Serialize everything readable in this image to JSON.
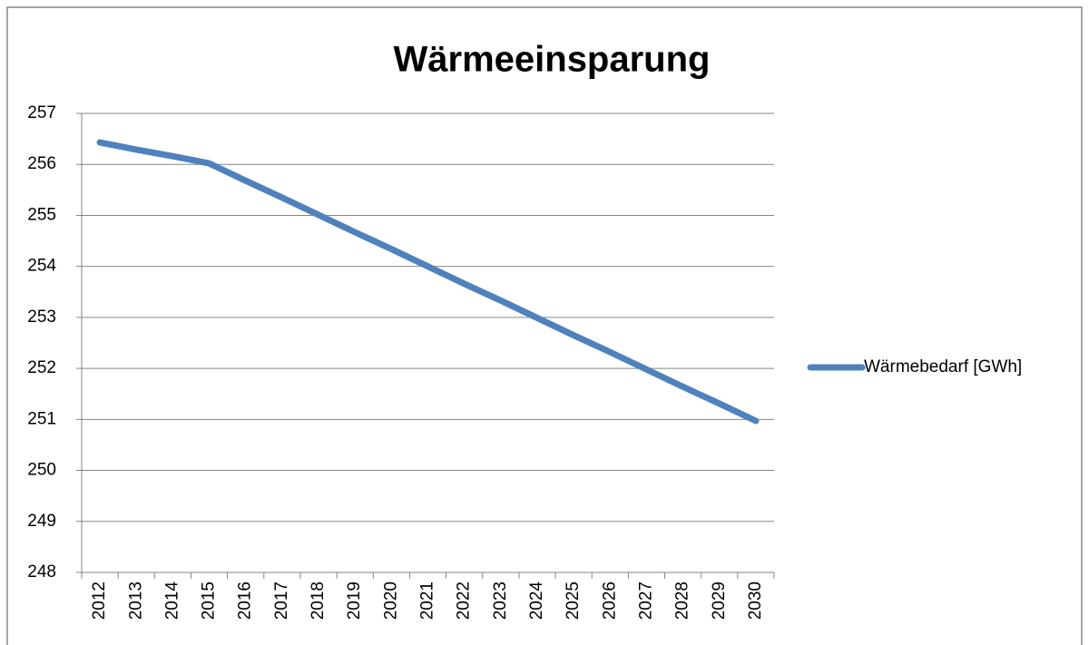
{
  "chart_data": {
    "type": "line",
    "title": "Wärmeeinsparung",
    "categories": [
      "2012",
      "2013",
      "2014",
      "2015",
      "2016",
      "2017",
      "2018",
      "2019",
      "2020",
      "2021",
      "2022",
      "2023",
      "2024",
      "2025",
      "2026",
      "2027",
      "2028",
      "2029",
      "2030"
    ],
    "series": [
      {
        "name": "Wärmebedarf [GWh]",
        "color": "#4f81bd",
        "values": [
          256.43,
          256.29,
          256.16,
          256.02,
          255.68,
          255.35,
          255.01,
          254.67,
          254.34,
          254.0,
          253.66,
          253.33,
          252.99,
          252.65,
          252.32,
          251.98,
          251.64,
          251.31,
          250.97
        ]
      }
    ],
    "ylim": [
      248,
      257
    ],
    "yticks": [
      248,
      249,
      250,
      251,
      252,
      253,
      254,
      255,
      256,
      257
    ],
    "grid": true,
    "legend": "right"
  }
}
